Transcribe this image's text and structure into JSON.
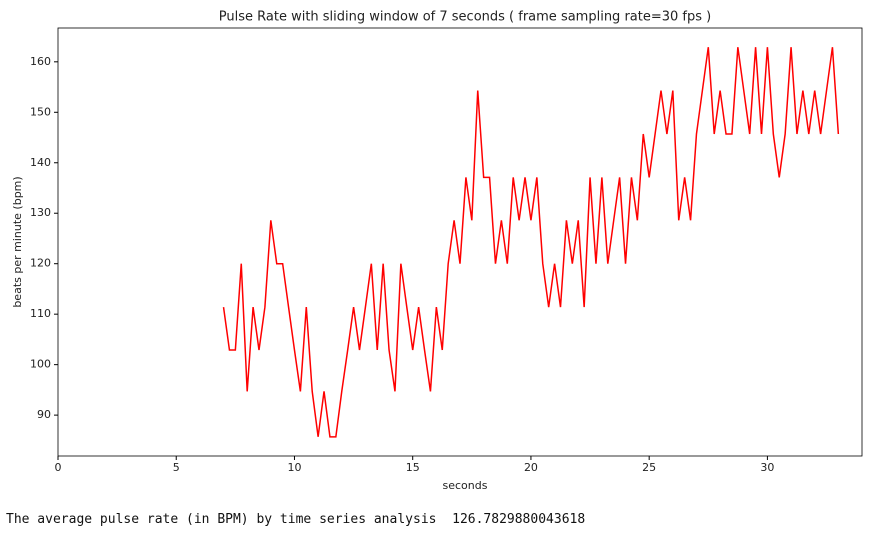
{
  "chart_data": {
    "type": "line",
    "title": "Pulse Rate with sliding window of 7 seconds  ( frame sampling rate=30 fps )",
    "xlabel": "seconds",
    "ylabel": "beats per minute (bpm)",
    "x": [
      7,
      7.25,
      7.5,
      7.75,
      8,
      8.25,
      8.5,
      8.75,
      9,
      9.25,
      9.5,
      9.75,
      10,
      10.25,
      10.5,
      10.75,
      11,
      11.25,
      11.5,
      11.75,
      12,
      12.25,
      12.5,
      12.75,
      13,
      13.25,
      13.5,
      13.75,
      14,
      14.25,
      14.5,
      14.75,
      15,
      15.25,
      15.5,
      15.75,
      16,
      16.25,
      16.5,
      16.75,
      17,
      17.25,
      17.5,
      17.75,
      18,
      18.25,
      18.5,
      18.75,
      19,
      19.25,
      19.5,
      19.75,
      20,
      20.25,
      20.5,
      20.75,
      21,
      21.25,
      21.5,
      21.75,
      22,
      22.25,
      22.5,
      22.75,
      23,
      23.25,
      23.5,
      23.75,
      24,
      24.25,
      24.5,
      24.75,
      25,
      25.25,
      25.5,
      25.75,
      26,
      26.25,
      26.5,
      26.75,
      27,
      27.25,
      27.5,
      27.75,
      28,
      28.25,
      28.5,
      28.75,
      29,
      29.25,
      29.5,
      29.75,
      30,
      30.25,
      30.5,
      30.75,
      31,
      31.25,
      31.5,
      31.75,
      32,
      32.25,
      32.5,
      32.75,
      33
    ],
    "series": [
      {
        "color": "#ff0000",
        "values": [
          111.4,
          102.9,
          102.9,
          120,
          94.7,
          111.4,
          102.9,
          111.4,
          128.6,
          120,
          120,
          111.4,
          102.9,
          94.7,
          111.4,
          94.7,
          85.7,
          94.7,
          85.7,
          85.7,
          94.7,
          102.9,
          111.4,
          102.9,
          111.4,
          120,
          102.9,
          120,
          102.9,
          94.7,
          120,
          111.4,
          102.9,
          111.4,
          102.9,
          94.7,
          111.4,
          102.9,
          120,
          128.6,
          120,
          137.1,
          128.6,
          154.3,
          137.1,
          137.1,
          120,
          128.6,
          120,
          137.1,
          128.6,
          137.1,
          128.6,
          137.1,
          120,
          111.4,
          120,
          111.4,
          128.6,
          120,
          128.6,
          111.4,
          137.1,
          120,
          137.1,
          120,
          128.6,
          137.1,
          120,
          137.1,
          128.6,
          145.7,
          137.1,
          145.7,
          154.3,
          145.7,
          154.3,
          128.6,
          137.1,
          128.6,
          145.7,
          154.3,
          162.9,
          145.7,
          154.3,
          145.7,
          145.7,
          162.9,
          154.3,
          145.7,
          162.9,
          145.7,
          162.9,
          145.7,
          137.1,
          145.7,
          162.9,
          145.7,
          154.3,
          145.7,
          154.3,
          145.7,
          154.3,
          162.9,
          145.7
        ]
      }
    ],
    "xlim": [
      0,
      34
    ],
    "ylim": [
      81.9,
      166.7
    ],
    "xticks": [
      0,
      5,
      10,
      15,
      20,
      25,
      30
    ],
    "yticks": [
      90,
      100,
      110,
      120,
      130,
      140,
      150,
      160
    ]
  },
  "output": "The average pulse rate (in BPM) by time series analysis  126.7829880043618"
}
